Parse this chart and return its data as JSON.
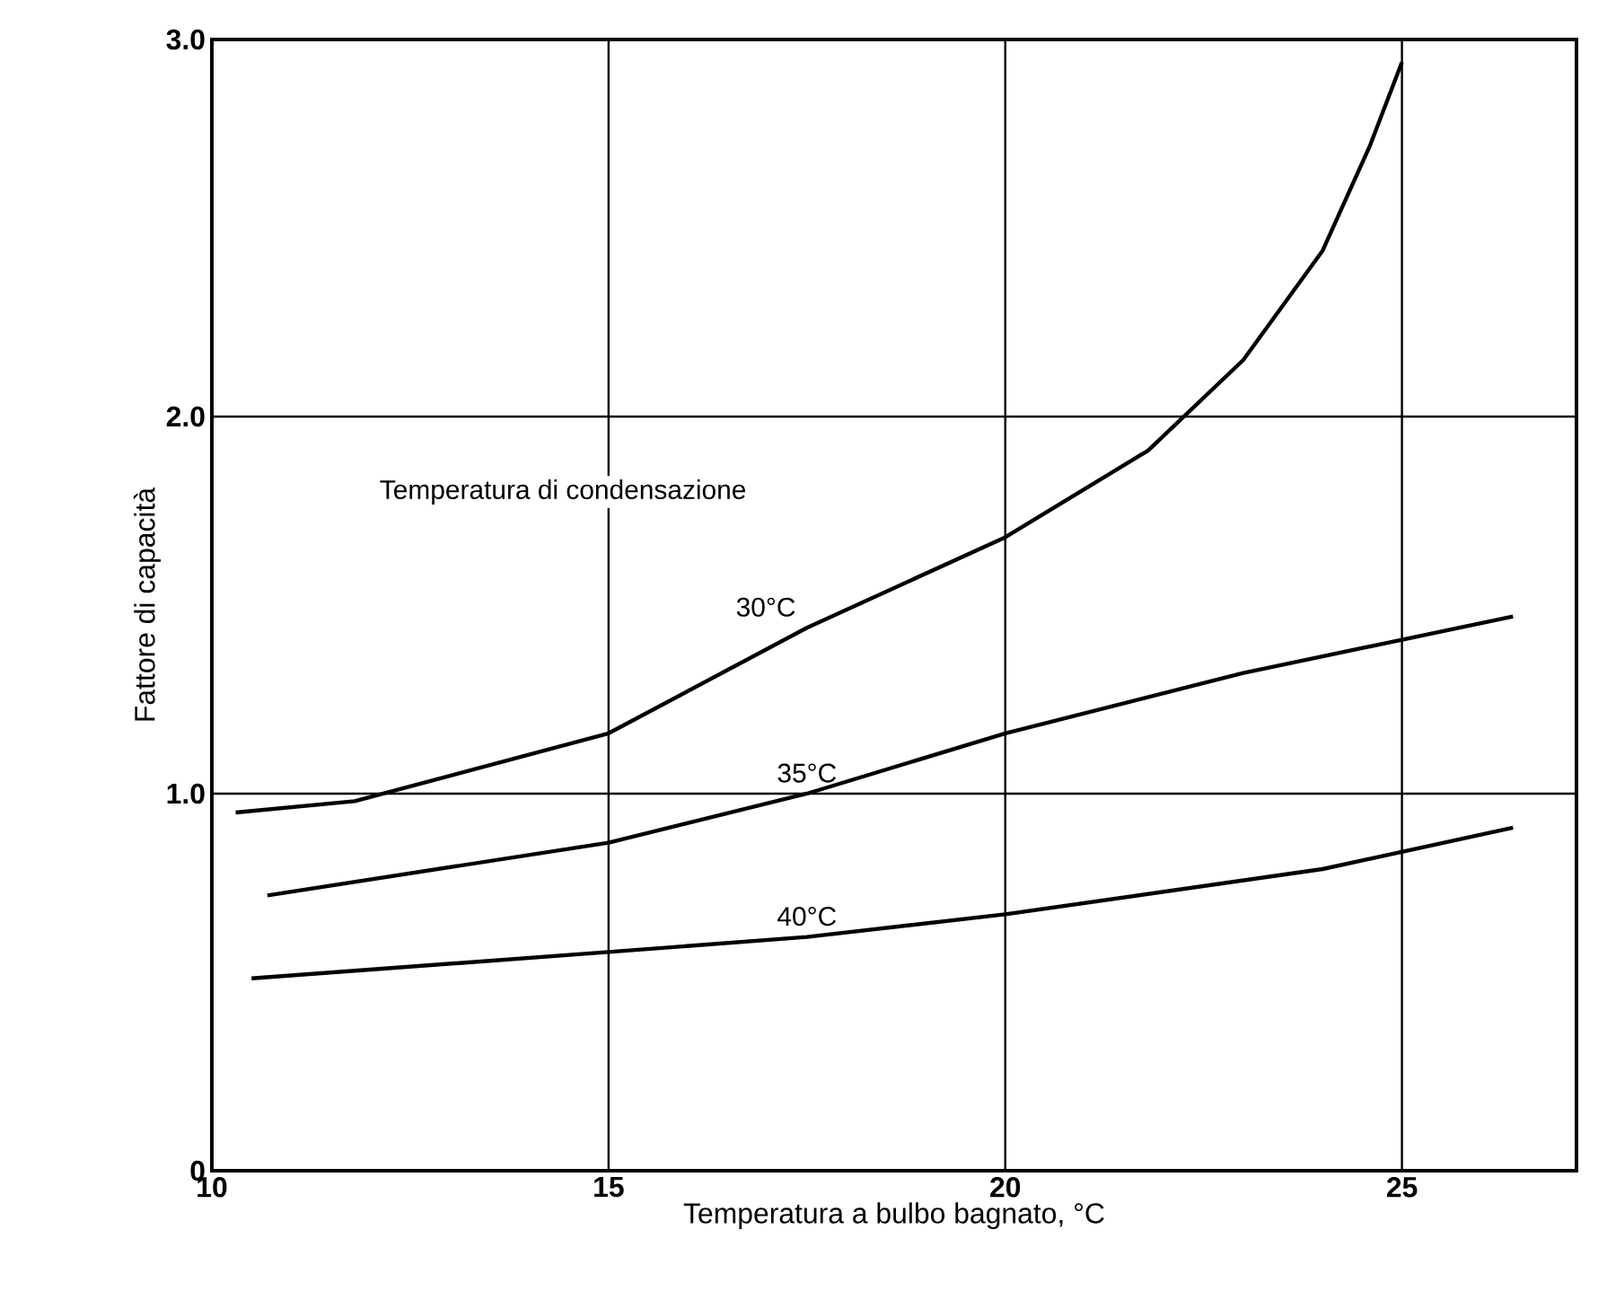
{
  "chart_data": {
    "type": "line",
    "xlabel": "Temperatura a bulbo bagnato, °C",
    "ylabel": "Fattore di capacità",
    "xlim": [
      10,
      27.2
    ],
    "ylim": [
      0,
      3.0
    ],
    "xticks": [
      10,
      15,
      20,
      25
    ],
    "yticks": [
      0,
      {
        "value": 1.0,
        "label": "1.0"
      },
      {
        "value": 2.0,
        "label": "2.0"
      },
      {
        "value": 3.0,
        "label": "3.0"
      }
    ],
    "grid": true,
    "marker": "none",
    "line_style": "solid",
    "legend": false,
    "annotations": [
      "Temperatura di condensazione"
    ],
    "series": [
      {
        "name": "30°C",
        "color": "#000000",
        "x": [
          10.3,
          11.8,
          15,
          17.5,
          20,
          21.8,
          23,
          24,
          24.6,
          25
        ],
        "values": [
          0.95,
          0.98,
          1.16,
          1.44,
          1.68,
          1.91,
          2.15,
          2.44,
          2.72,
          2.94
        ]
      },
      {
        "name": "35°C",
        "color": "#000000",
        "x": [
          10.7,
          15,
          17.5,
          20,
          23,
          26.4
        ],
        "values": [
          0.73,
          0.87,
          1.0,
          1.16,
          1.32,
          1.47
        ]
      },
      {
        "name": "40°C",
        "color": "#000000",
        "x": [
          10.5,
          15,
          17.5,
          20,
          24,
          26.4
        ],
        "values": [
          0.51,
          0.58,
          0.62,
          0.68,
          0.8,
          0.91
        ]
      }
    ]
  }
}
